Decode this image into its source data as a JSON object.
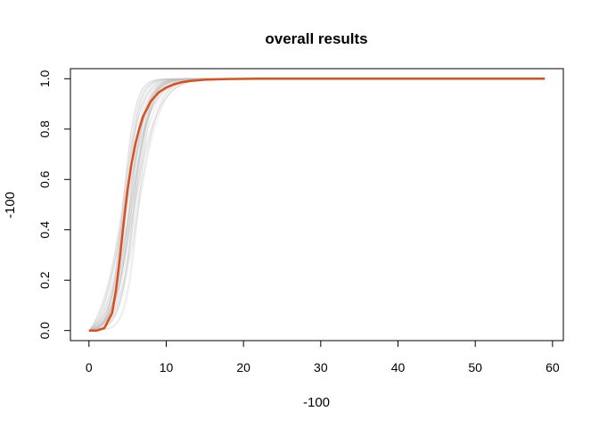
{
  "chart_data": {
    "type": "line",
    "title": "overall results",
    "xlabel": "-100",
    "ylabel": "-100",
    "xlim": [
      -2.4,
      61.4
    ],
    "ylim": [
      -0.04,
      1.04
    ],
    "x_ticks": [
      0,
      10,
      20,
      30,
      40,
      50,
      60
    ],
    "y_ticks": [
      0.0,
      0.2,
      0.4,
      0.6,
      0.8,
      1.0
    ],
    "x_tick_labels": [
      "0",
      "10",
      "20",
      "30",
      "40",
      "50",
      "60"
    ],
    "y_tick_labels": [
      "0.0",
      "0.2",
      "0.4",
      "0.6",
      "0.8",
      "1.0"
    ],
    "grid": false,
    "background_series": {
      "count": 60,
      "color": "#bdbdbd",
      "description_shape": "logistic",
      "midpoint_range": [
        4.2,
        6.6
      ],
      "steepness_range": [
        0.55,
        1.3
      ]
    },
    "series": [
      {
        "color": "#d94f1e",
        "x": [
          0,
          1,
          2,
          3,
          3.5,
          4,
          4.5,
          5,
          5.5,
          6,
          6.5,
          7,
          8,
          9,
          10,
          11,
          12,
          13,
          15,
          18,
          22,
          30,
          40,
          50,
          59
        ],
        "values": [
          0.0,
          0.0,
          0.01,
          0.07,
          0.16,
          0.29,
          0.43,
          0.56,
          0.66,
          0.74,
          0.8,
          0.85,
          0.91,
          0.945,
          0.965,
          0.978,
          0.986,
          0.991,
          0.996,
          0.999,
          1.0,
          1.0,
          1.0,
          1.0,
          1.0
        ]
      }
    ]
  }
}
